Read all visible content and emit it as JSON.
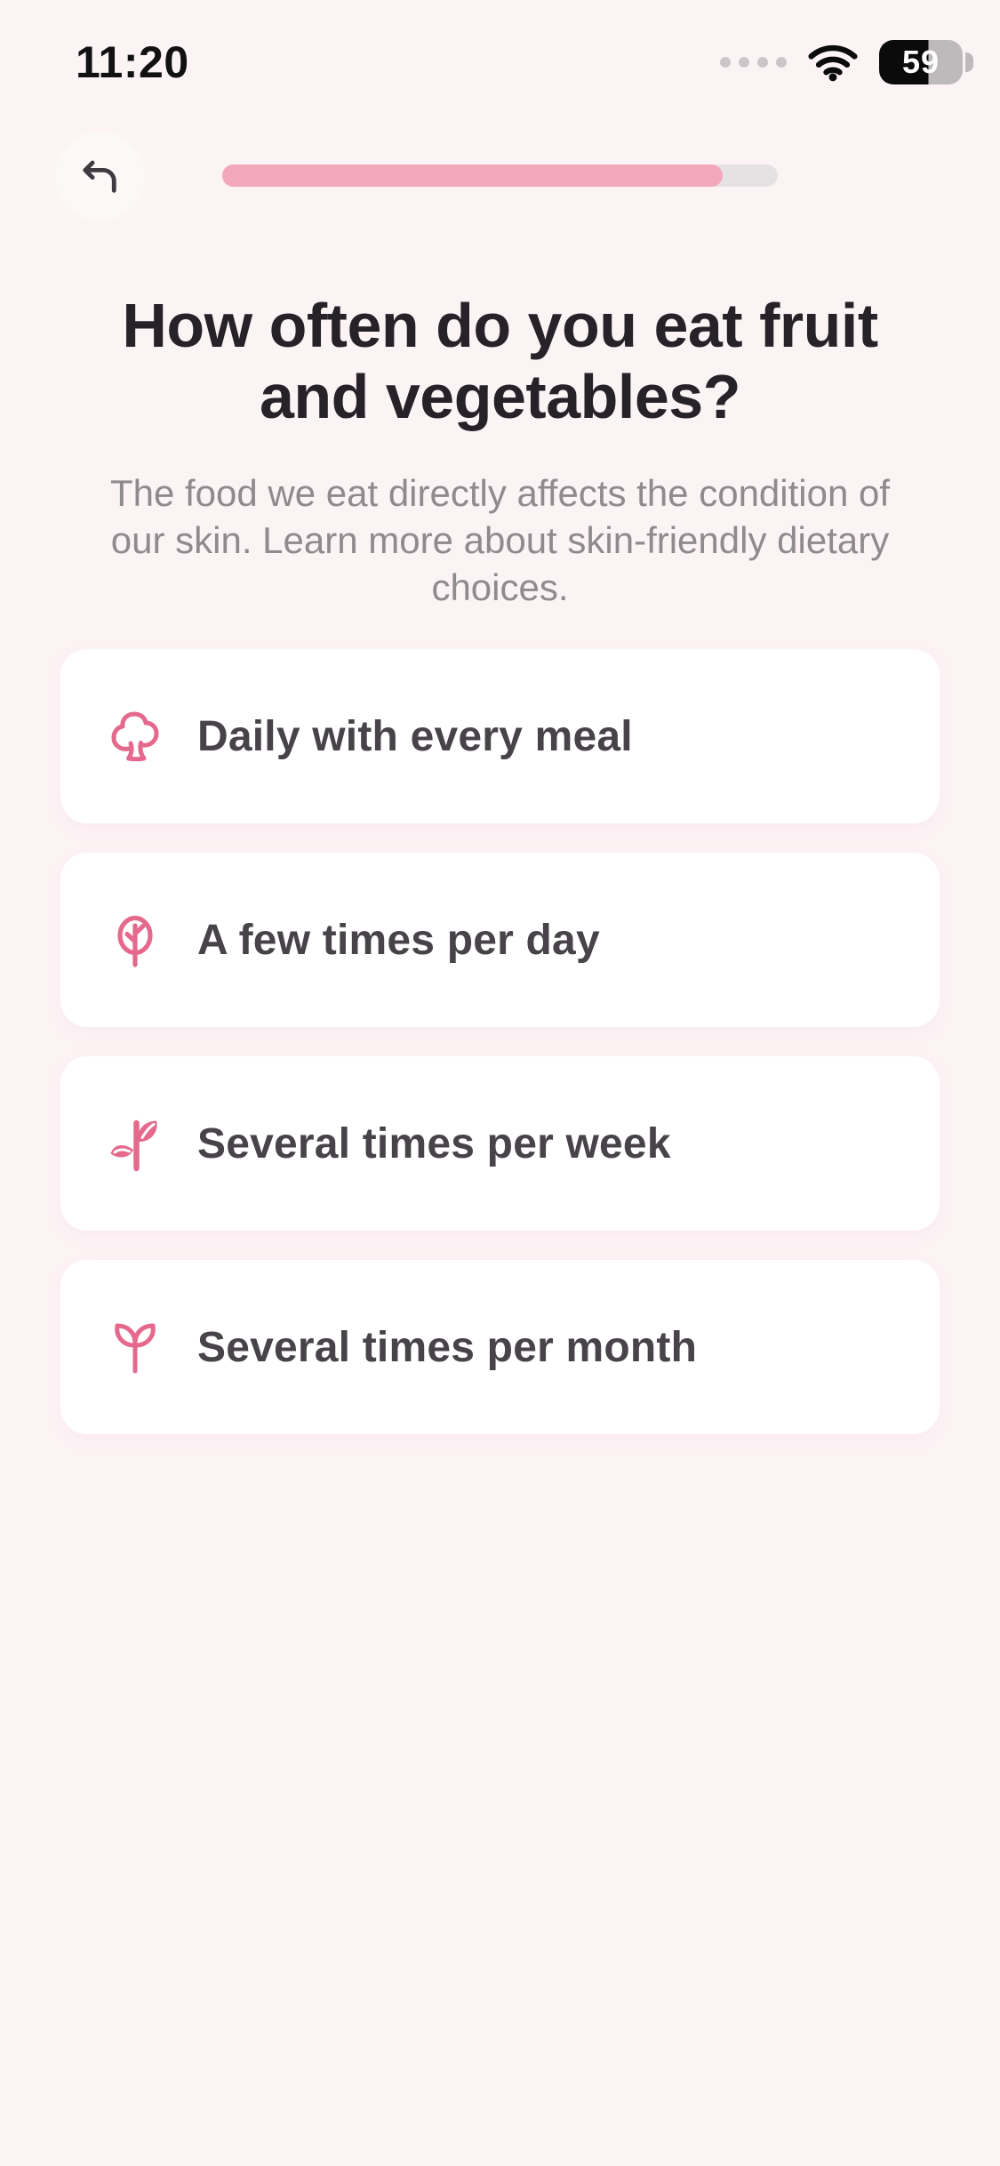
{
  "status_bar": {
    "time": "11:20",
    "battery_percent": "59",
    "cellular_dots": 4
  },
  "nav": {
    "progress_percent": 90
  },
  "question": {
    "title_lines": [
      "How often do you eat fruit",
      "and vegetables?"
    ],
    "subtitle_lines": [
      "The food we eat directly affects the condition of",
      "our skin. Learn more about skin-friendly dietary",
      "choices."
    ]
  },
  "options": [
    {
      "icon": "tree-bushy-icon",
      "label": "Daily with every meal"
    },
    {
      "icon": "tree-round-icon",
      "label": "A few times per day"
    },
    {
      "icon": "sprout-leaves-icon",
      "label": "Several times per week"
    },
    {
      "icon": "seedling-icon",
      "label": "Several times per month"
    }
  ],
  "colors": {
    "bg": "#FCF3F5",
    "card": "#FFFFFF",
    "accent": "#E5698C",
    "progress-fill": "#F3A7BB",
    "progress-track": "#E6E2E3",
    "title": "#262228",
    "subtitle": "#8E8A8D",
    "option-text": "#474349"
  }
}
